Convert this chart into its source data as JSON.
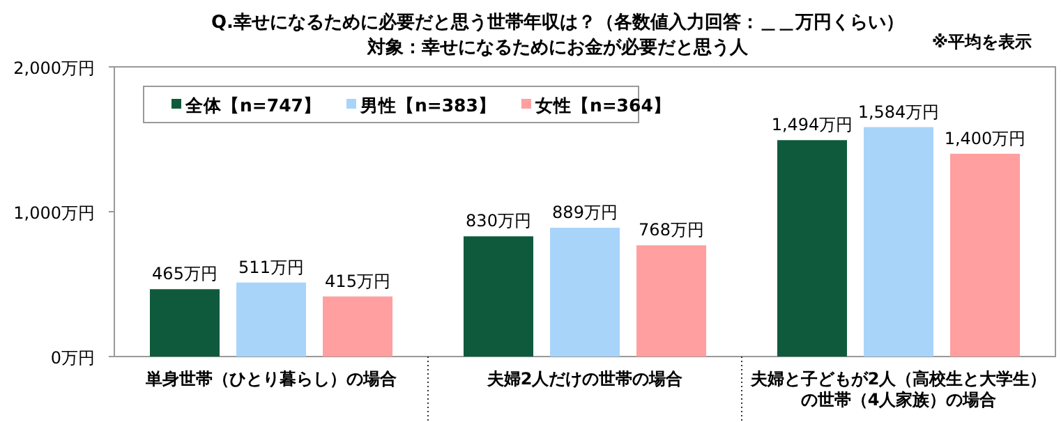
{
  "chart_data": {
    "type": "bar",
    "title": "Q.幸せになるために必要だと思う世帯年収は？（各数値入力回答：＿＿万円くらい）",
    "subtitle": "対象：幸せになるためにお金が必要だと思う人",
    "annotations": [
      "※平均を表示"
    ],
    "categories": [
      "単身世帯（ひとり暮らし）の場合",
      "夫婦2人だけの世帯の場合",
      "夫婦と子どもが2人（高校生と大学生）の世帯（4人家族）の場合"
    ],
    "series": [
      {
        "name": "全体【n=747】",
        "color": "#0f5a3c",
        "values": [
          465,
          830,
          1494
        ],
        "value_labels": [
          "465万円",
          "830万円",
          "1,494万円"
        ]
      },
      {
        "name": "男性【n=383】",
        "color": "#a8d4fa",
        "values": [
          511,
          889,
          1584
        ],
        "value_labels": [
          "511万円",
          "889万円",
          "1,584万円"
        ]
      },
      {
        "name": "女性【n=364】",
        "color": "#ff9f9f",
        "values": [
          415,
          768,
          1400
        ],
        "value_labels": [
          "415万円",
          "768万円",
          "1,400万円"
        ]
      }
    ],
    "ylim": [
      0,
      2000
    ],
    "yticks": [
      {
        "value": 0,
        "label": "0万円"
      },
      {
        "value": 1000,
        "label": "1,000万円"
      },
      {
        "value": 2000,
        "label": "2,000万円"
      }
    ],
    "grid": false,
    "legend": "top left"
  }
}
